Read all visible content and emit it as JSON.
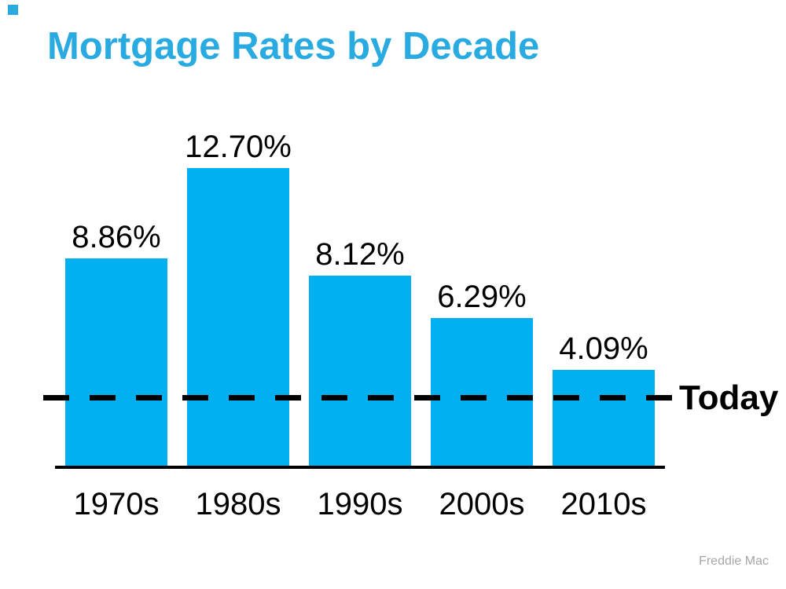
{
  "slide": {
    "title": "Mortgage Rates by Decade",
    "today_label": "Today",
    "source": "Freddie Mac"
  },
  "colors": {
    "title_blue": "#29ABE2",
    "bar_blue": "#00B0F0",
    "line_black": "#000000",
    "source_gray": "#A6A6A6"
  },
  "chart_data": {
    "type": "bar",
    "title": "Mortgage Rates by Decade",
    "categories": [
      "1970s",
      "1980s",
      "1990s",
      "2000s",
      "2010s"
    ],
    "values": [
      8.86,
      12.7,
      8.12,
      6.29,
      4.09
    ],
    "value_labels": [
      "8.86%",
      "12.70%",
      "8.12%",
      "6.29%",
      "4.09%"
    ],
    "reference_line": {
      "label": "Today",
      "approx_value": 2.9,
      "style": "dashed"
    },
    "xlabel": "",
    "ylabel": "",
    "ylim": [
      0,
      13
    ],
    "grid": false,
    "legend": "none",
    "source": "Freddie Mac"
  }
}
